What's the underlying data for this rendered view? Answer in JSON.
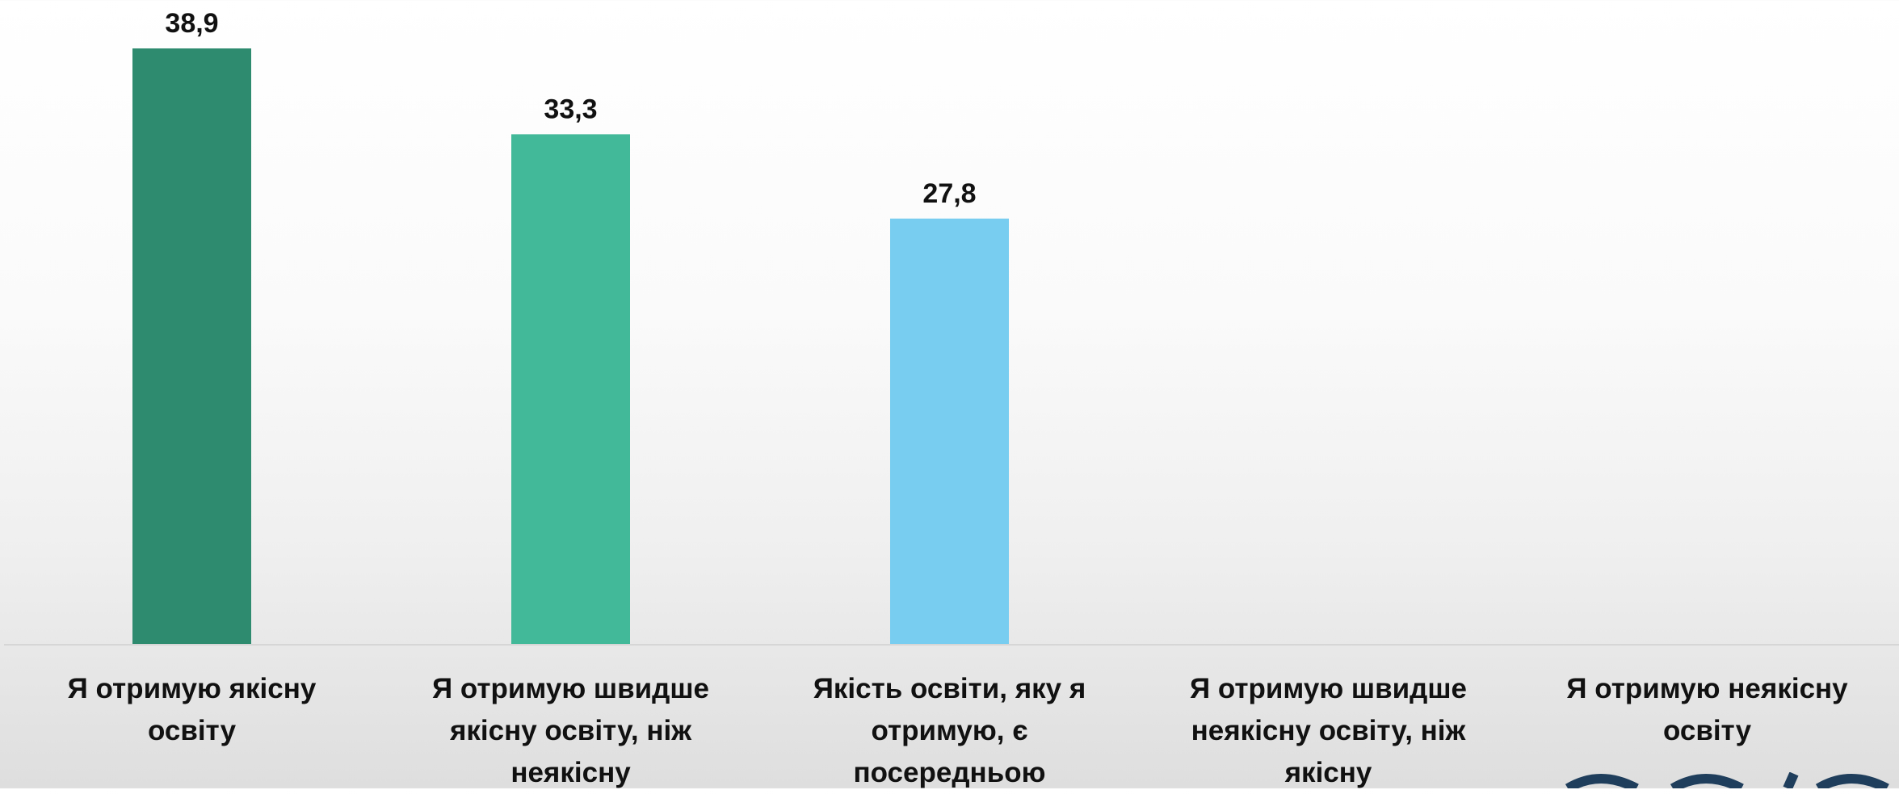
{
  "chart_data": {
    "type": "bar",
    "categories": [
      "Я отримую якісну освіту",
      "Я отримую швидше якісну освіту, ніж неякісну",
      "Якість освіти, яку я отримую, є посередньою",
      "Я отримую швидше неякісну освіту, ніж якісну",
      "Я отримую неякісну освіту"
    ],
    "values": [
      38.9,
      33.3,
      27.8,
      null,
      null
    ],
    "value_labels": [
      "38,9",
      "33,3",
      "27,8",
      "",
      ""
    ],
    "colors": [
      "#2e8b6f",
      "#42b999",
      "#78cdf0",
      "#cccccc",
      "#cccccc"
    ],
    "title": "",
    "xlabel": "",
    "ylabel": "",
    "ylim": [
      0,
      40
    ],
    "grid": false,
    "legend": "none"
  },
  "colors": {
    "axis_line": "#d6d6d6",
    "logo": "#1f3e5c"
  }
}
